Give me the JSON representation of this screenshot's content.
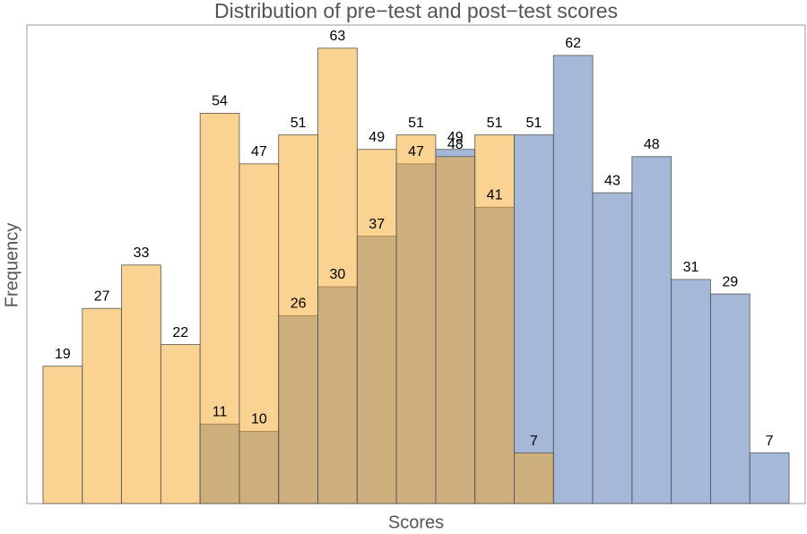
{
  "chart_data": {
    "type": "histogram",
    "title": "Distribution of pre−test and post−test scores",
    "x_label": "Scores",
    "y_label": "Frequency",
    "categories": [
      null,
      null,
      null,
      null,
      null,
      null,
      null,
      null,
      null,
      null,
      null,
      null,
      null,
      null,
      null,
      null,
      null,
      null,
      null
    ],
    "series": [
      {
        "color": "#4c72b0",
        "values": [
          null,
          null,
          null,
          null,
          11,
          10,
          26,
          30,
          37,
          47,
          49,
          41,
          51,
          62,
          43,
          48,
          31,
          29,
          7
        ]
      },
      {
        "color": "#f5a623",
        "values": [
          19,
          27,
          33,
          22,
          54,
          47,
          51,
          63,
          49,
          51,
          48,
          51,
          7,
          null,
          null,
          null,
          null,
          null,
          null
        ]
      }
    ],
    "ylim": [
      0,
      66.2
    ]
  }
}
